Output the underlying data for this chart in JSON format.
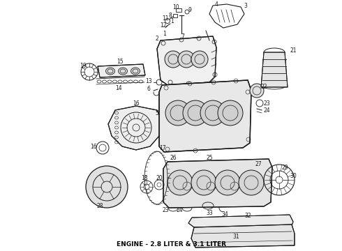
{
  "title": "ENGINE - 2.8 LITER & 3.1 LITER",
  "title_fontsize": 6.5,
  "title_fontweight": "bold",
  "background_color": "#ffffff",
  "line_color": "#1a1a1a",
  "label_color": "#1a1a1a",
  "label_fontsize": 5.5
}
